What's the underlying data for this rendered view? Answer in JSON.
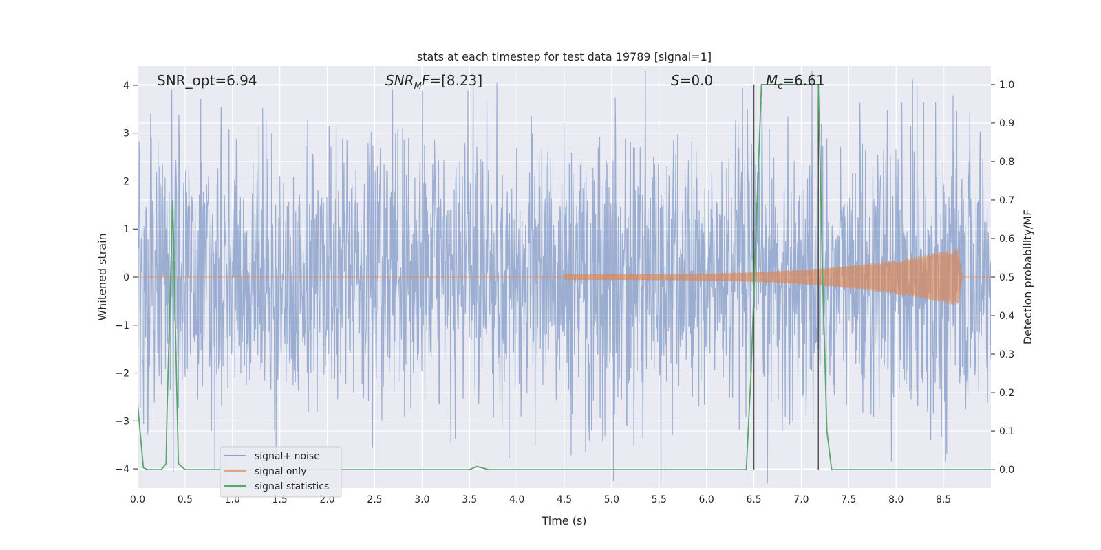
{
  "chart_data": {
    "type": "line",
    "title": "stats at each timestep for test data 19789 [signal=1]",
    "xlabel": "Time (s)",
    "ylabel": "Whitened strain",
    "y2label": "Detection probability/MF",
    "xlim": [
      0.0,
      9.0
    ],
    "ylim": [
      -4.4,
      4.4
    ],
    "y2lim": [
      -0.048,
      1.048
    ],
    "x_ticks": [
      "0.0",
      "0.5",
      "1.0",
      "1.5",
      "2.0",
      "2.5",
      "3.0",
      "3.5",
      "4.0",
      "4.5",
      "5.0",
      "5.5",
      "6.0",
      "6.5",
      "7.0",
      "7.5",
      "8.0",
      "8.5"
    ],
    "y_ticks": [
      "4",
      "3",
      "2",
      "1",
      "0",
      "−1",
      "−2",
      "−3",
      "−4"
    ],
    "y2_ticks": [
      "1.0",
      "0.9",
      "0.8",
      "0.7",
      "0.6",
      "0.5",
      "0.4",
      "0.3",
      "0.2",
      "0.1",
      "0.0"
    ],
    "grid": true,
    "legend_position": "lower-left",
    "annotations": {
      "snr_opt": "SNR_opt=6.94",
      "snr_mf_base": "SNR",
      "snr_mf_sub": "M",
      "snr_mf_rest": "F=[8.23]",
      "s_base": "S",
      "s_rest": "=0.0",
      "mc_base": "M",
      "mc_sub": "c",
      "mc_rest": "=6.61"
    },
    "vlines_x": [
      6.5,
      7.18
    ],
    "colors": {
      "noise": "#4c72b0",
      "signal": "#dd8452",
      "stats": "#55a868",
      "axes_bg": "#eaeaf2",
      "grid": "#ffffff",
      "vline": "#555555"
    },
    "series": [
      {
        "name": "signal+ noise",
        "axis": "left",
        "style": "dense noise trace, amplitude roughly ±4"
      },
      {
        "name": "signal only",
        "axis": "left",
        "style": "chirp starting ~4.5 s, peaking ~0.6 at 8.65 s, ending 8.7 s"
      },
      {
        "name": "signal statistics",
        "axis": "right",
        "x": [
          0.0,
          0.06,
          0.1,
          0.25,
          0.3,
          0.31,
          0.37,
          0.4,
          0.43,
          0.5,
          3.5,
          3.58,
          3.7,
          6.42,
          6.47,
          6.52,
          6.58,
          7.18,
          7.22,
          7.27,
          7.32,
          9.0
        ],
        "y": [
          0.17,
          0.005,
          0.0,
          0.0,
          0.015,
          0.15,
          0.7,
          0.35,
          0.015,
          0.0,
          0.0,
          0.008,
          0.0,
          0.0,
          0.25,
          0.6,
          1.0,
          1.0,
          0.55,
          0.1,
          0.0,
          0.0
        ]
      }
    ]
  }
}
